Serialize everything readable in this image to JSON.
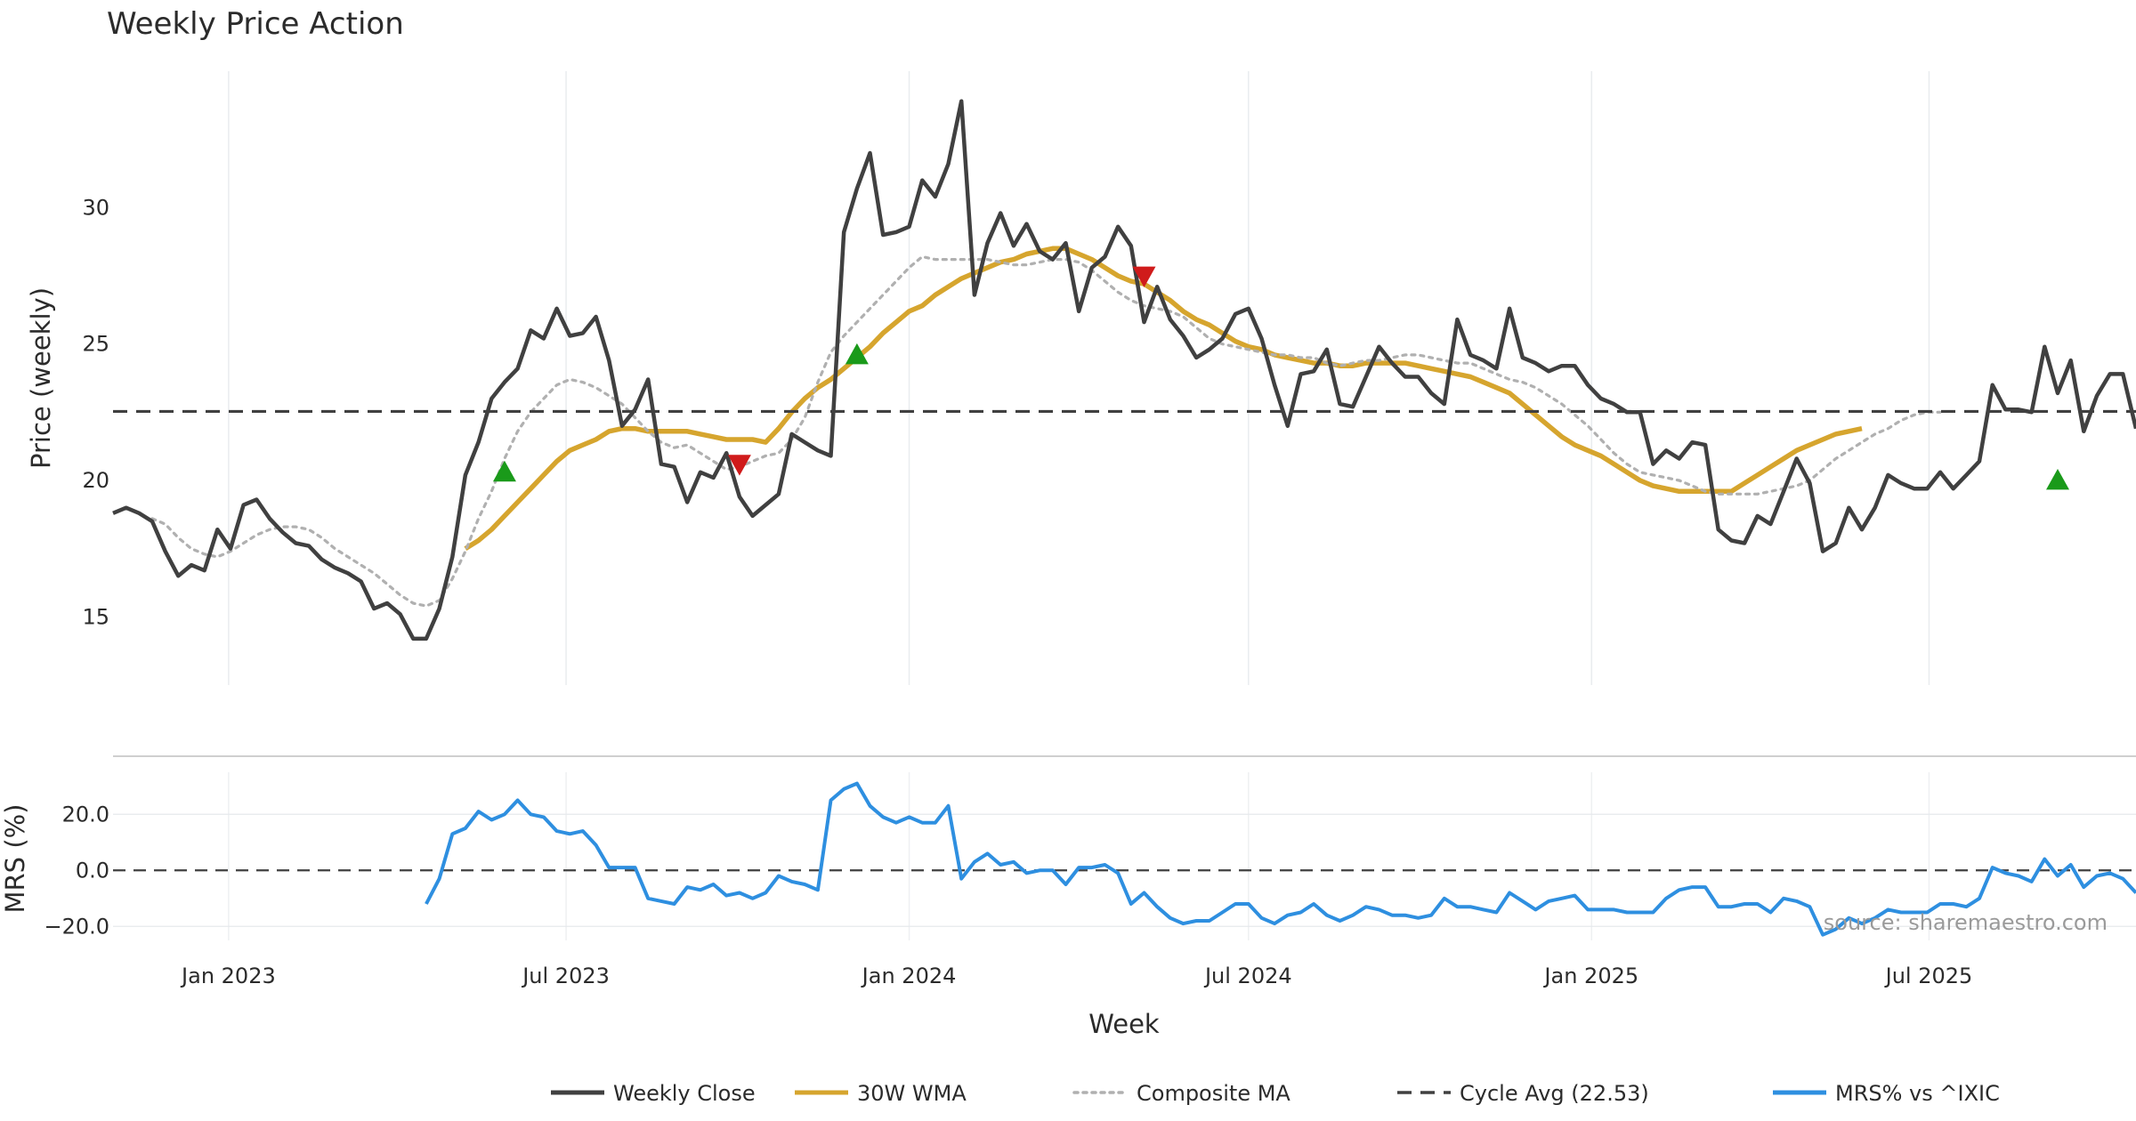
{
  "chart_data": {
    "type": "line",
    "title": "Weekly Price Action",
    "xlabel": "Week",
    "x_tick_labels": [
      "Jan 2023",
      "Jul 2023",
      "Jan 2024",
      "Jul 2024",
      "Jan 2025",
      "Jul 2025"
    ],
    "x_range": [
      "2022-10-31",
      "2025-10-20"
    ],
    "weeks": 156,
    "price_panel": {
      "ylabel": "Price (weekly)",
      "ylim": [
        12.5,
        35
      ],
      "yticks": [
        15,
        20,
        25,
        30
      ],
      "yticklabels": [
        "15",
        "20",
        "25",
        "30"
      ],
      "series": [
        {
          "name": "Weekly Close",
          "color": "#404040",
          "start_index": 0,
          "values": [
            18.8,
            19.0,
            18.8,
            18.5,
            17.4,
            16.5,
            16.9,
            16.7,
            18.2,
            17.5,
            19.1,
            19.3,
            18.6,
            18.1,
            17.7,
            17.6,
            17.1,
            16.8,
            16.6,
            16.3,
            15.3,
            15.5,
            15.1,
            14.2,
            14.2,
            15.3,
            17.2,
            20.2,
            21.4,
            23.0,
            23.6,
            24.1,
            25.5,
            25.2,
            26.3,
            25.3,
            25.4,
            26.0,
            24.4,
            22.0,
            22.6,
            23.7,
            20.6,
            20.5,
            19.2,
            20.3,
            20.1,
            21.0,
            19.4,
            18.7,
            19.1,
            19.5,
            21.7,
            21.4,
            21.1,
            20.9,
            29.1,
            30.7,
            32.0,
            29.0,
            29.1,
            29.3,
            31.0,
            30.4,
            31.6,
            33.9,
            26.8,
            28.7,
            29.8,
            28.6,
            29.4,
            28.4,
            28.1,
            28.7,
            26.2,
            27.8,
            28.2,
            29.3,
            28.6,
            25.8,
            27.1,
            25.9,
            25.3,
            24.5,
            24.8,
            25.2,
            26.1,
            26.3,
            25.2,
            23.5,
            22.0,
            23.9,
            24.0,
            24.8,
            22.8,
            22.7,
            23.8,
            24.9,
            24.3,
            23.8,
            23.8,
            23.2,
            22.8,
            25.9,
            24.6,
            24.4,
            24.1,
            26.3,
            24.5,
            24.3,
            24.0,
            24.2,
            24.2,
            23.5,
            23.0,
            22.8,
            22.5,
            22.5,
            20.6,
            21.1,
            20.8,
            21.4,
            21.3,
            18.2,
            17.8,
            17.7,
            18.7,
            18.4,
            19.6,
            20.8,
            19.9,
            17.4,
            17.7,
            19.0,
            18.2,
            19.0,
            20.2,
            19.9,
            19.7,
            19.7,
            20.3,
            19.7,
            20.2,
            20.7,
            23.5,
            22.6,
            22.6,
            22.5,
            24.9,
            23.2,
            24.4,
            21.8,
            23.1,
            23.9,
            23.9,
            21.9
          ]
        },
        {
          "name": "30W WMA",
          "color": "#d6a52e",
          "start_index": 27,
          "values": [
            17.5,
            17.8,
            18.2,
            18.7,
            19.2,
            19.7,
            20.2,
            20.7,
            21.1,
            21.3,
            21.5,
            21.8,
            21.9,
            21.9,
            21.8,
            21.8,
            21.8,
            21.8,
            21.7,
            21.6,
            21.5,
            21.5,
            21.5,
            21.4,
            21.9,
            22.5,
            23.0,
            23.4,
            23.7,
            24.1,
            24.5,
            24.9,
            25.4,
            25.8,
            26.2,
            26.4,
            26.8,
            27.1,
            27.4,
            27.6,
            27.8,
            28.0,
            28.1,
            28.3,
            28.4,
            28.5,
            28.5,
            28.3,
            28.1,
            27.8,
            27.5,
            27.3,
            27.2,
            26.9,
            26.6,
            26.2,
            25.9,
            25.7,
            25.4,
            25.1,
            24.9,
            24.8,
            24.6,
            24.5,
            24.4,
            24.3,
            24.3,
            24.2,
            24.2,
            24.3,
            24.3,
            24.3,
            24.3,
            24.2,
            24.1,
            24.0,
            23.9,
            23.8,
            23.6,
            23.4,
            23.2,
            22.8,
            22.4,
            22.0,
            21.6,
            21.3,
            21.1,
            20.9,
            20.6,
            20.3,
            20.0,
            19.8,
            19.7,
            19.6,
            19.6,
            19.6,
            19.6,
            19.6,
            19.9,
            20.2,
            20.5,
            20.8,
            21.1,
            21.3,
            21.5,
            21.7,
            21.8,
            21.9
          ]
        },
        {
          "name": "Composite MA",
          "color": "#b0b0b0",
          "start_index": 3,
          "values": [
            18.6,
            18.4,
            17.9,
            17.5,
            17.3,
            17.2,
            17.4,
            17.7,
            18.0,
            18.2,
            18.3,
            18.3,
            18.2,
            17.9,
            17.5,
            17.2,
            16.9,
            16.6,
            16.2,
            15.8,
            15.5,
            15.4,
            15.6,
            16.4,
            17.4,
            18.6,
            19.6,
            20.8,
            21.8,
            22.5,
            23.0,
            23.5,
            23.7,
            23.6,
            23.4,
            23.1,
            22.8,
            22.3,
            21.8,
            21.4,
            21.2,
            21.3,
            21.0,
            20.7,
            20.4,
            20.5,
            20.7,
            20.9,
            21.0,
            21.5,
            22.3,
            23.6,
            24.7,
            25.3,
            25.8,
            26.3,
            26.8,
            27.3,
            27.8,
            28.2,
            28.1,
            28.1,
            28.1,
            28.1,
            28.1,
            28.0,
            27.9,
            27.9,
            28.0,
            28.1,
            28.1,
            28.0,
            27.7,
            27.3,
            26.9,
            26.6,
            26.4,
            26.3,
            26.2,
            26.0,
            25.6,
            25.2,
            25.0,
            24.9,
            24.8,
            24.7,
            24.6,
            24.6,
            24.5,
            24.5,
            24.3,
            24.2,
            24.3,
            24.4,
            24.4,
            24.5,
            24.6,
            24.6,
            24.5,
            24.4,
            24.3,
            24.3,
            24.1,
            23.9,
            23.7,
            23.6,
            23.4,
            23.1,
            22.8,
            22.4,
            22.0,
            21.5,
            21.0,
            20.6,
            20.3,
            20.2,
            20.1,
            20.0,
            19.8,
            19.6,
            19.5,
            19.5,
            19.5,
            19.5,
            19.6,
            19.7,
            19.8,
            20.0,
            20.4,
            20.8,
            21.1,
            21.4,
            21.7,
            21.9,
            22.2,
            22.4,
            22.5,
            22.5
          ]
        },
        {
          "name": "Cycle Avg (22.53)",
          "color": "#404040",
          "constant": 22.53
        }
      ],
      "markers": [
        {
          "type": "buy",
          "color": "#1a9a1a",
          "index": 30,
          "value": 20.3
        },
        {
          "type": "sell",
          "color": "#d01b1b",
          "index": 48,
          "value": 20.6
        },
        {
          "type": "buy",
          "color": "#1a9a1a",
          "index": 57,
          "value": 24.6
        },
        {
          "type": "sell",
          "color": "#d01b1b",
          "index": 79,
          "value": 27.5
        },
        {
          "type": "buy",
          "color": "#1a9a1a",
          "index": 149,
          "value": 20.0
        }
      ]
    },
    "mrs_panel": {
      "ylabel": "MRS (%)",
      "ylim": [
        -25,
        35
      ],
      "yticks": [
        -20,
        0,
        20
      ],
      "yticklabels": [
        "−20.0",
        "0.0",
        "20.0"
      ],
      "reference_line": 0,
      "series": [
        {
          "name": "MRS% vs ^IXIC",
          "color": "#2e8fe0",
          "start_index": 24,
          "values": [
            -12,
            -3,
            13,
            15,
            21,
            18,
            20,
            25,
            20,
            19,
            14,
            13,
            14,
            9,
            1,
            1,
            1,
            -10,
            -11,
            -12,
            -6,
            -7,
            -5,
            -9,
            -8,
            -10,
            -8,
            -2,
            -4,
            -5,
            -7,
            25,
            29,
            31,
            23,
            19,
            17,
            19,
            17,
            17,
            23,
            -3,
            3,
            6,
            2,
            3,
            -1,
            0,
            0,
            -5,
            1,
            1,
            2,
            -1,
            -12,
            -8,
            -13,
            -17,
            -19,
            -18,
            -18,
            -15,
            -12,
            -12,
            -17,
            -19,
            -16,
            -15,
            -12,
            -16,
            -18,
            -16,
            -13,
            -14,
            -16,
            -16,
            -17,
            -16,
            -10,
            -13,
            -13,
            -14,
            -15,
            -8,
            -11,
            -14,
            -11,
            -10,
            -9,
            -14,
            -14,
            -14,
            -15,
            -15,
            -15,
            -10,
            -7,
            -6,
            -6,
            -13,
            -13,
            -12,
            -12,
            -15,
            -10,
            -11,
            -13,
            -23,
            -21,
            -17,
            -19,
            -17,
            -14,
            -15,
            -15,
            -15,
            -12,
            -12,
            -13,
            -10,
            1,
            -1,
            -2,
            -4,
            4,
            -2,
            2,
            -6,
            -2,
            -1,
            -3,
            -8
          ]
        }
      ]
    },
    "legend": {
      "placement": "bottom-center",
      "entries": [
        {
          "label": "Weekly Close",
          "style": "solid",
          "color": "#404040"
        },
        {
          "label": "30W WMA",
          "style": "solid",
          "color": "#d6a52e"
        },
        {
          "label": "Composite MA",
          "style": "dotted",
          "color": "#b0b0b0"
        },
        {
          "label": "Cycle Avg (22.53)",
          "style": "dashed",
          "color": "#404040"
        },
        {
          "label": "MRS% vs ^IXIC",
          "style": "solid",
          "color": "#2e8fe0"
        }
      ]
    },
    "source_note": "source: sharemaestro.com"
  }
}
